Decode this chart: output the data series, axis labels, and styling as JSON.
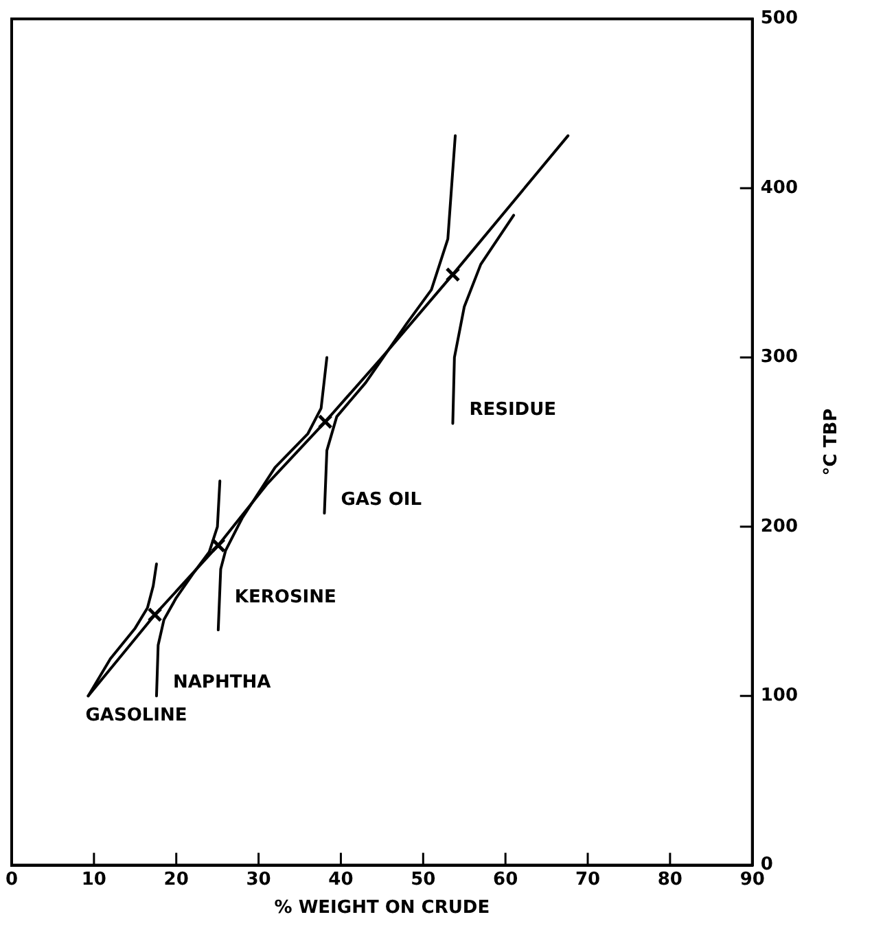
{
  "chart_data": {
    "type": "line",
    "xlabel": "% WEIGHT ON CRUDE",
    "ylabel": "°C TBP",
    "xlim": [
      0,
      90
    ],
    "xticks": [
      0,
      10,
      20,
      30,
      40,
      50,
      60,
      70,
      80,
      90
    ],
    "ylim": [
      0,
      500
    ],
    "yticks": [
      0,
      100,
      200,
      300,
      400,
      500
    ],
    "grid": false,
    "legend": false,
    "line_style": "solid",
    "marker": "none",
    "series": [
      {
        "color": "#000000",
        "x": [
          9.3,
          17.4,
          25.1,
          31,
          38.1,
          45,
          53.6,
          67.6
        ],
        "values": [
          100,
          148,
          189,
          225,
          262,
          300,
          349,
          431
        ]
      },
      {
        "name": "GASOLINE",
        "color": "#000000",
        "x": [
          9.3,
          12,
          15,
          16.5,
          17.2,
          17.6
        ],
        "values": [
          100,
          122,
          140,
          152,
          165,
          178
        ]
      },
      {
        "name": "NAPHTHA",
        "color": "#000000",
        "x": [
          17.6,
          17.8,
          18.5,
          20,
          22,
          24,
          25,
          25.3
        ],
        "values": [
          100,
          130,
          145,
          158,
          172,
          185,
          200,
          227
        ]
      },
      {
        "name": "KEROSINE",
        "color": "#000000",
        "x": [
          25.1,
          25.4,
          26,
          28,
          32,
          36,
          37.6,
          38.3
        ],
        "values": [
          139,
          175,
          186,
          205,
          235,
          255,
          270,
          300
        ]
      },
      {
        "name": "GAS OIL",
        "color": "#000000",
        "x": [
          38,
          38.3,
          39.5,
          43,
          48,
          51,
          53,
          53.9
        ],
        "values": [
          208,
          245,
          265,
          285,
          320,
          340,
          370,
          431
        ]
      },
      {
        "name": "RESIDUE",
        "color": "#000000",
        "x": [
          53.6,
          53.8,
          55,
          57,
          61
        ],
        "values": [
          261,
          300,
          330,
          355,
          384
        ]
      },
      {
        "type": "scatter",
        "color": "#000000",
        "marker": "cross",
        "x": [
          17.4,
          25.1,
          38.1,
          53.6
        ],
        "values": [
          148,
          189,
          262,
          349
        ]
      }
    ]
  }
}
